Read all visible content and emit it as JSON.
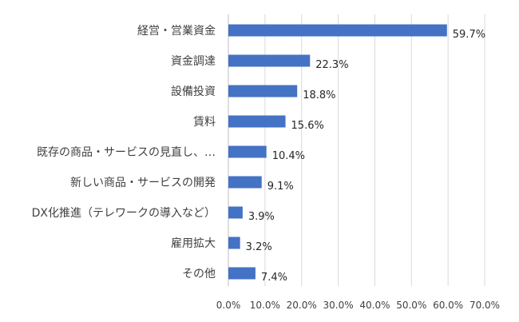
{
  "chart_data": {
    "type": "bar",
    "orientation": "horizontal",
    "title": "",
    "xlabel": "",
    "ylabel": "",
    "categories": [
      "経営・営業資金",
      "資金調達",
      "設備投資",
      "賃料",
      "既存の商品・サービスの見直し、…",
      "新しい商品・サービスの開発",
      "DX化推進（テレワークの導入など）",
      "雇用拡大",
      "その他"
    ],
    "values": [
      59.7,
      22.3,
      18.8,
      15.6,
      10.4,
      9.1,
      3.9,
      3.2,
      7.4
    ],
    "value_labels": [
      "59.7%",
      "22.3%",
      "18.8%",
      "15.6%",
      "10.4%",
      "9.1%",
      "3.9%",
      "3.2%",
      "7.4%"
    ],
    "xlim": [
      0,
      70
    ],
    "x_ticks": [
      0,
      10,
      20,
      30,
      40,
      50,
      60,
      70
    ],
    "x_tick_labels": [
      "0.0%",
      "10.0%",
      "20.0%",
      "30.0%",
      "40.0%",
      "50.0%",
      "60.0%",
      "70.0%"
    ],
    "grid": "vertical",
    "legend": "none",
    "bar_color": "#4472c4"
  }
}
